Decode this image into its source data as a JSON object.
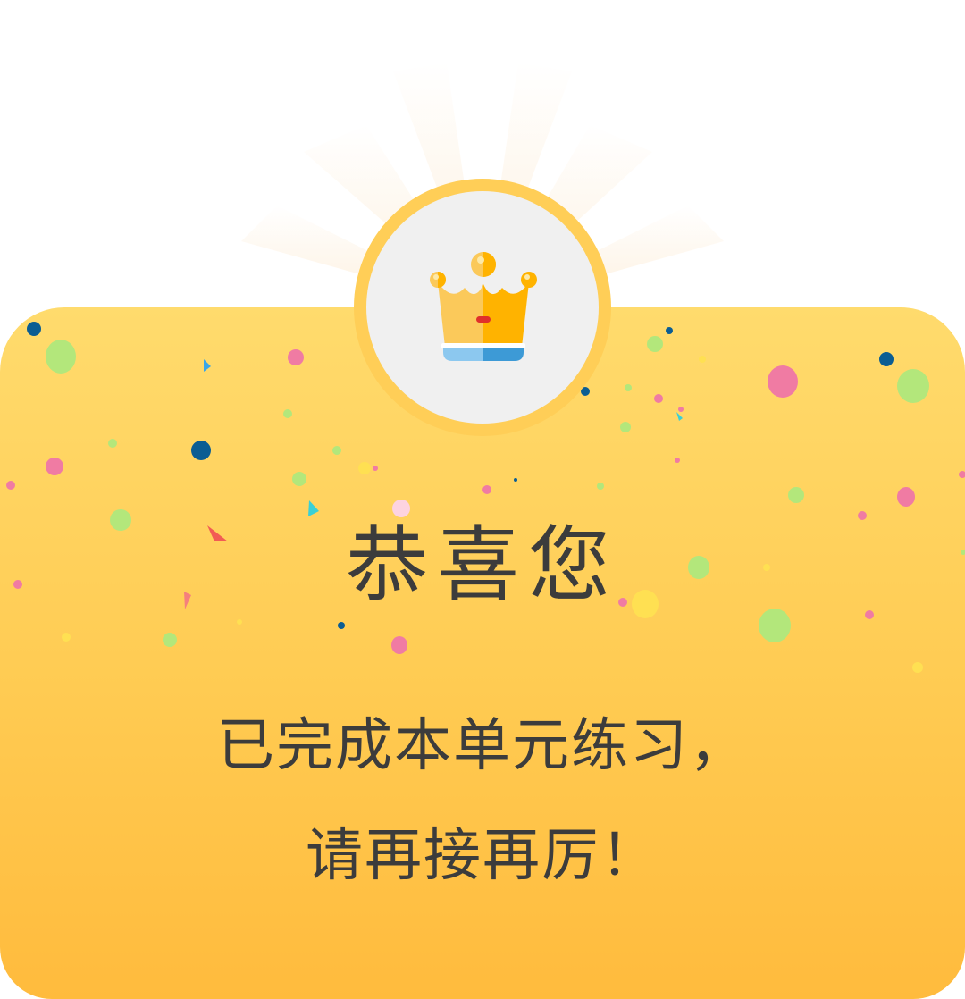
{
  "congrats": {
    "title": "恭喜您",
    "line1": "已完成本单元练习，",
    "line2": "请再接再厉！"
  },
  "badge": {
    "icon": "crown-icon"
  },
  "colors": {
    "card_top": "#ffdb6d",
    "card_bottom": "#ffbb3d",
    "badge_ring": "#ffce57",
    "badge_fill": "#f0f0f0",
    "text": "#3c3c3c",
    "crown_light": "#fbc95a",
    "crown_dark": "#ffb300",
    "crown_band_light": "#8cc8ef",
    "crown_band_dark": "#3d9ad6"
  }
}
